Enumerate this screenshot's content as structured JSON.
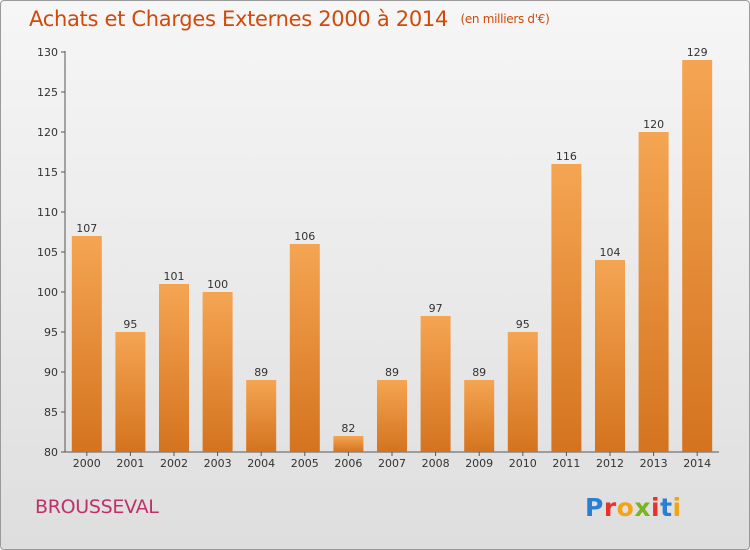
{
  "header": {
    "title": "Achats et Charges Externes 2000 à 2014",
    "unit": "(en milliers d'€)"
  },
  "footer": {
    "town": "BROUSSEVAL",
    "logo_text": "Proxiti"
  },
  "colors": {
    "title": "#d04a0a",
    "town": "#c0306a",
    "bar_light": "#f5a552",
    "bar_dark": "#d4731f",
    "axis": "#555555"
  },
  "chart_data": {
    "type": "bar",
    "title": "Achats et Charges Externes 2000 à 2014",
    "subtitle": "(en milliers d'€)",
    "categories": [
      "2000",
      "2001",
      "2002",
      "2003",
      "2004",
      "2005",
      "2006",
      "2007",
      "2008",
      "2009",
      "2010",
      "2011",
      "2012",
      "2013",
      "2014"
    ],
    "values": [
      107,
      95,
      101,
      100,
      89,
      106,
      82,
      89,
      97,
      89,
      95,
      116,
      104,
      120,
      129
    ],
    "ylim": [
      80,
      130
    ],
    "yticks": [
      80,
      85,
      90,
      95,
      100,
      105,
      110,
      115,
      120,
      125,
      130
    ],
    "grid": false,
    "data_labels": true,
    "xlabel": "",
    "ylabel": ""
  }
}
